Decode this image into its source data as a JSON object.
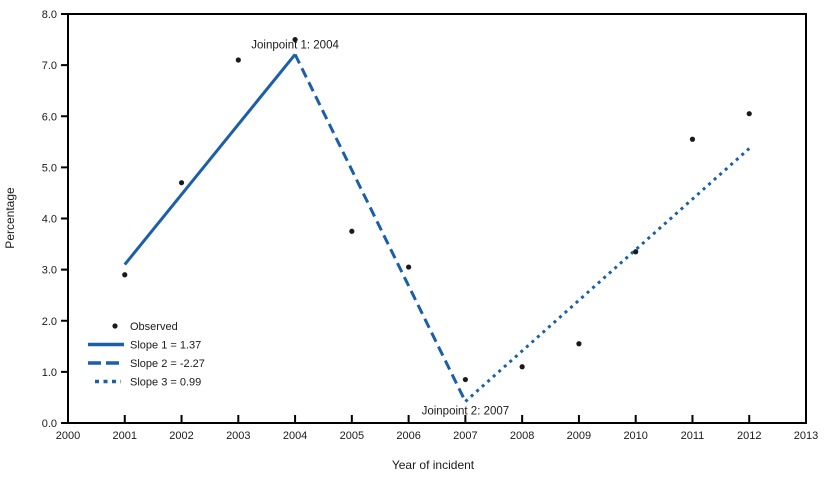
{
  "chart_data": {
    "type": "line",
    "title": "",
    "xlabel": "Year of incident",
    "ylabel": "Percentage",
    "xlim": [
      2000,
      2013
    ],
    "ylim": [
      0,
      8
    ],
    "xticks": [
      2000,
      2001,
      2002,
      2003,
      2004,
      2005,
      2006,
      2007,
      2008,
      2009,
      2010,
      2011,
      2012,
      2013
    ],
    "yticks": {
      "values": [
        0,
        1,
        2,
        3,
        4,
        5,
        6,
        7,
        8
      ],
      "labels": [
        "0.0",
        "1.0",
        "2.0",
        "3.0",
        "4.0",
        "5.0",
        "6.0",
        "7.0",
        "8.0"
      ]
    },
    "grid": false,
    "legend_position": "lower-left",
    "colors": {
      "trend": "#1a5fa8",
      "observed": "#1a1a1a",
      "axis": "#000000",
      "text": "#1a1a1a"
    },
    "series": [
      {
        "name": "Observed",
        "kind": "scatter",
        "x": [
          2001,
          2002,
          2003,
          2004,
          2005,
          2006,
          2007,
          2008,
          2009,
          2010,
          2011,
          2012
        ],
        "y": [
          2.9,
          4.7,
          7.1,
          7.5,
          3.75,
          3.05,
          0.85,
          1.1,
          1.55,
          3.35,
          5.55,
          6.05
        ]
      },
      {
        "name": "Slope 1 = 1.37",
        "kind": "line",
        "dash": "solid",
        "x": [
          2001,
          2004
        ],
        "y": [
          3.1,
          7.21
        ]
      },
      {
        "name": "Slope 2 = -2.27",
        "kind": "line",
        "dash": "dashed",
        "x": [
          2004,
          2007
        ],
        "y": [
          7.21,
          0.42
        ]
      },
      {
        "name": "Slope 3 = 0.99",
        "kind": "line",
        "dash": "dotted",
        "x": [
          2007,
          2012
        ],
        "y": [
          0.42,
          5.37
        ]
      }
    ],
    "annotations": [
      {
        "text": "Joinpoint 1: 2004",
        "x": 2004,
        "y": 7.21,
        "placement": "above"
      },
      {
        "text": "Joinpoint 2: 2007",
        "x": 2007,
        "y": 0.42,
        "placement": "below"
      }
    ]
  }
}
